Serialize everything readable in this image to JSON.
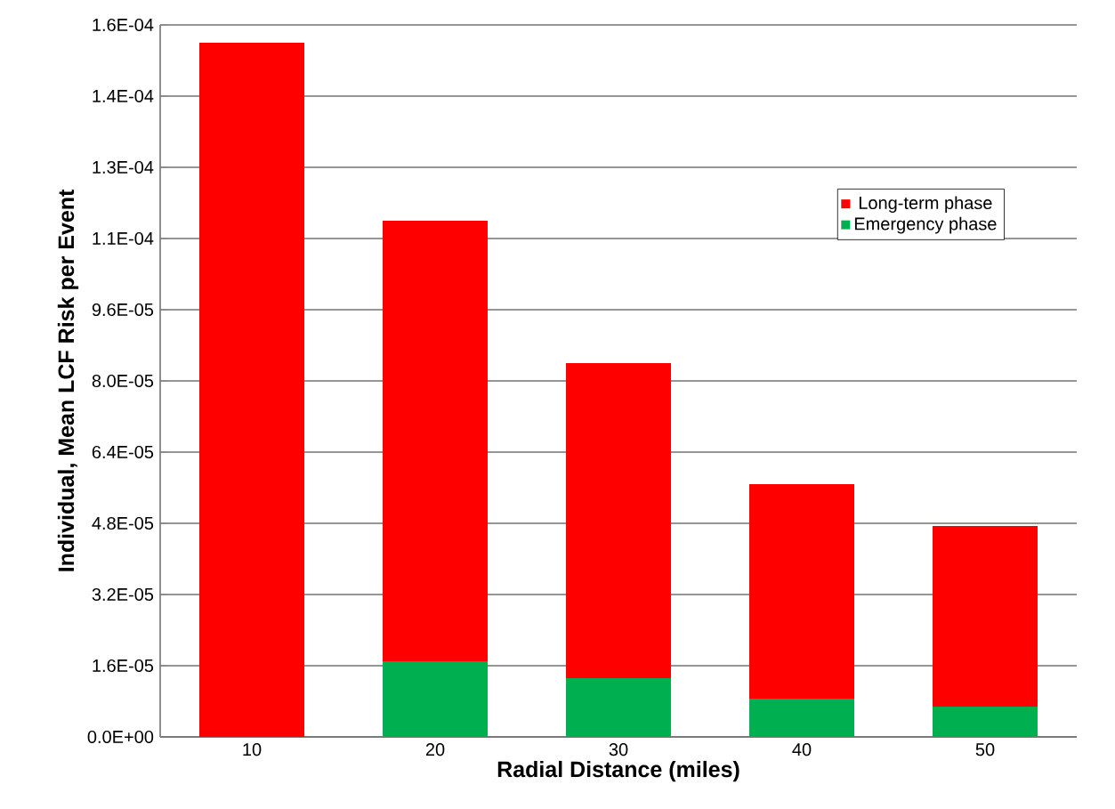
{
  "chart_data": {
    "type": "bar",
    "stacked": true,
    "xlabel": "Radial Distance (miles)",
    "ylabel": "Individual, Mean LCF Risk per Event",
    "categories": [
      "10",
      "20",
      "30",
      "40",
      "50"
    ],
    "series": [
      {
        "name": "Emergency phase",
        "color": "#00b050",
        "values": [
          0,
          1.7e-05,
          1.32e-05,
          8.6e-06,
          6.8e-06
        ]
      },
      {
        "name": "Long-term phase",
        "color": "#ff0000",
        "values": [
          0.000156,
          9.9e-05,
          7.08e-05,
          4.82e-05,
          4.06e-05
        ]
      }
    ],
    "ylim": [
      0,
      0.00016
    ],
    "yticks": [
      {
        "value": 0,
        "label": "0.0E+00"
      },
      {
        "value": 1.6e-05,
        "label": "1.6E-05"
      },
      {
        "value": 3.2e-05,
        "label": "3.2E-05"
      },
      {
        "value": 4.8e-05,
        "label": "4.8E-05"
      },
      {
        "value": 6.4e-05,
        "label": "6.4E-05"
      },
      {
        "value": 8e-05,
        "label": "8.0E-05"
      },
      {
        "value": 9.6e-05,
        "label": "9.6E-05"
      },
      {
        "value": 0.000112,
        "label": "1.1E-04"
      },
      {
        "value": 0.000128,
        "label": "1.3E-04"
      },
      {
        "value": 0.000144,
        "label": "1.4E-04"
      },
      {
        "value": 0.00016,
        "label": "1.6E-04"
      }
    ],
    "grid": "y",
    "legend": "top right"
  }
}
